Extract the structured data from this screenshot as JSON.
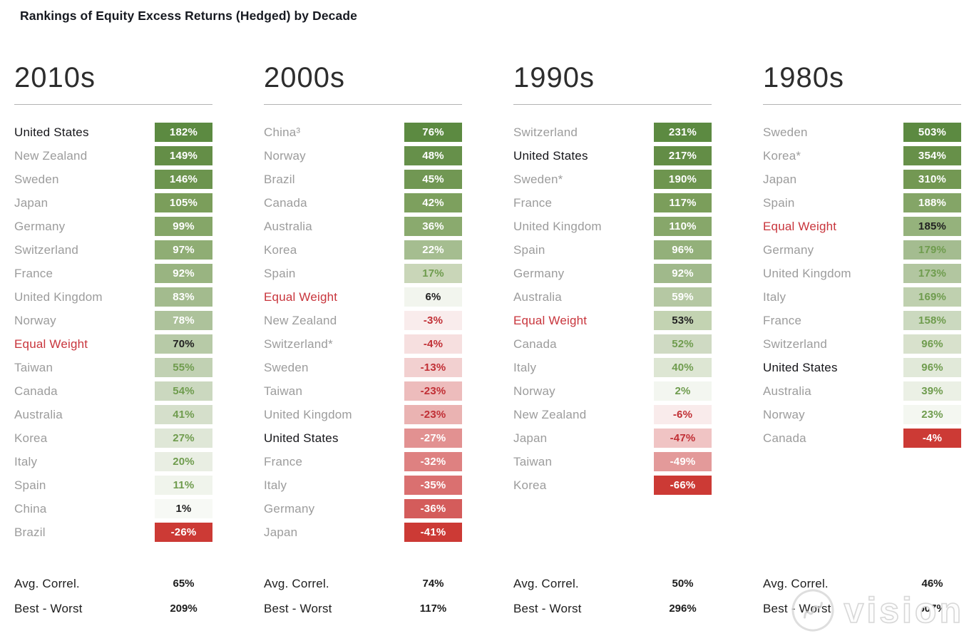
{
  "title": "Rankings of Equity Excess Returns (Hedged) by Decade",
  "watermark": {
    "text": "vision",
    "stamp_icon": "circular-stamp-icon"
  },
  "colors": {
    "background": "#ffffff",
    "best_green": "#5c8a41",
    "worst_red": "#cc3a35",
    "equal_weight_red": "#c8353c",
    "country_gray": "#9c9c9c",
    "highlight_black": "#16161a",
    "rule_gray": "#b3b3b3"
  },
  "chart_data": {
    "type": "heatmap",
    "title": "Rankings of Equity Excess Returns (Hedged) by Decade",
    "legend_position": "none",
    "value_unit": "%",
    "stat_labels": [
      "Avg. Correl.",
      "Best - Worst"
    ],
    "columns": [
      {
        "decade": "2010s",
        "stat_values": [
          65,
          209
        ],
        "rows": [
          {
            "country": "United States",
            "value": 182,
            "bg": "#5c8a41",
            "fg": "white",
            "label_color": "black"
          },
          {
            "country": "New Zealand",
            "value": 149,
            "bg": "#648e47",
            "fg": "white",
            "label_color": "gray"
          },
          {
            "country": "Sweden",
            "value": 146,
            "bg": "#6c944e",
            "fg": "white",
            "label_color": "gray"
          },
          {
            "country": "Japan",
            "value": 105,
            "bg": "#7b9e5b",
            "fg": "white",
            "label_color": "gray"
          },
          {
            "country": "Germany",
            "value": 99,
            "bg": "#85a668",
            "fg": "white",
            "label_color": "gray"
          },
          {
            "country": "Switzerland",
            "value": 97,
            "bg": "#8fad74",
            "fg": "white",
            "label_color": "gray"
          },
          {
            "country": "France",
            "value": 92,
            "bg": "#99b481",
            "fg": "white",
            "label_color": "gray"
          },
          {
            "country": "United Kingdom",
            "value": 83,
            "bg": "#a3bb8e",
            "fg": "white",
            "label_color": "gray"
          },
          {
            "country": "Norway",
            "value": 78,
            "bg": "#adc29b",
            "fg": "white",
            "label_color": "gray"
          },
          {
            "country": "Equal Weight",
            "value": 70,
            "bg": "#b7caa7",
            "fg": "black",
            "label_color": "red"
          },
          {
            "country": "Taiwan",
            "value": 55,
            "bg": "#c1d1b3",
            "fg": "green",
            "label_color": "gray"
          },
          {
            "country": "Canada",
            "value": 54,
            "bg": "#cbd8bf",
            "fg": "green",
            "label_color": "gray"
          },
          {
            "country": "Australia",
            "value": 41,
            "bg": "#d5dfcb",
            "fg": "green",
            "label_color": "gray"
          },
          {
            "country": "Korea",
            "value": 27,
            "bg": "#dfe7d7",
            "fg": "green",
            "label_color": "gray"
          },
          {
            "country": "Italy",
            "value": 20,
            "bg": "#e9eee3",
            "fg": "green",
            "label_color": "gray"
          },
          {
            "country": "Spain",
            "value": 11,
            "bg": "#f0f4ec",
            "fg": "green",
            "label_color": "gray"
          },
          {
            "country": "China",
            "value": 1,
            "bg": "#f7f9f5",
            "fg": "black",
            "label_color": "gray"
          },
          {
            "country": "Brazil",
            "value": -26,
            "bg": "#cc3a35",
            "fg": "white",
            "label_color": "gray"
          }
        ]
      },
      {
        "decade": "2000s",
        "stat_values": [
          74,
          117
        ],
        "rows": [
          {
            "country": "China³",
            "value": 76,
            "bg": "#5c8a41",
            "fg": "white",
            "label_color": "gray"
          },
          {
            "country": "Norway",
            "value": 48,
            "bg": "#66904a",
            "fg": "white",
            "label_color": "gray"
          },
          {
            "country": "Brazil",
            "value": 45,
            "bg": "#719753",
            "fg": "white",
            "label_color": "gray"
          },
          {
            "country": "Canada",
            "value": 42,
            "bg": "#7da05e",
            "fg": "white",
            "label_color": "gray"
          },
          {
            "country": "Australia",
            "value": 36,
            "bg": "#8aaa6e",
            "fg": "white",
            "label_color": "gray"
          },
          {
            "country": "Korea",
            "value": 22,
            "bg": "#a5bd90",
            "fg": "white",
            "label_color": "gray"
          },
          {
            "country": "Spain",
            "value": 17,
            "bg": "#c9d6b8",
            "fg": "green",
            "label_color": "gray"
          },
          {
            "country": "Equal Weight",
            "value": 6,
            "bg": "#f2f5ee",
            "fg": "black",
            "label_color": "red"
          },
          {
            "country": "New Zealand",
            "value": -3,
            "bg": "#f9ecec",
            "fg": "red",
            "label_color": "gray"
          },
          {
            "country": "Switzerland*",
            "value": -4,
            "bg": "#f6dfdf",
            "fg": "red",
            "label_color": "gray"
          },
          {
            "country": "Sweden",
            "value": -13,
            "bg": "#f2d0d0",
            "fg": "red",
            "label_color": "gray"
          },
          {
            "country": "Taiwan",
            "value": -23,
            "bg": "#edbcbc",
            "fg": "red",
            "label_color": "gray"
          },
          {
            "country": "United Kingdom",
            "value": -23,
            "bg": "#eab3b2",
            "fg": "red",
            "label_color": "gray"
          },
          {
            "country": "United States",
            "value": -27,
            "bg": "#e29191",
            "fg": "white",
            "label_color": "black"
          },
          {
            "country": "France",
            "value": -32,
            "bg": "#de8181",
            "fg": "white",
            "label_color": "gray"
          },
          {
            "country": "Italy",
            "value": -35,
            "bg": "#da7070",
            "fg": "white",
            "label_color": "gray"
          },
          {
            "country": "Germany",
            "value": -36,
            "bg": "#d45c5b",
            "fg": "white",
            "label_color": "gray"
          },
          {
            "country": "Japan",
            "value": -41,
            "bg": "#cc3a35",
            "fg": "white",
            "label_color": "gray"
          }
        ]
      },
      {
        "decade": "1990s",
        "stat_values": [
          50,
          296
        ],
        "rows": [
          {
            "country": "Switzerland",
            "value": 231,
            "bg": "#5c8a41",
            "fg": "white",
            "label_color": "gray"
          },
          {
            "country": "United States",
            "value": 217,
            "bg": "#638d46",
            "fg": "white",
            "label_color": "black"
          },
          {
            "country": "Sweden*",
            "value": 190,
            "bg": "#6e954f",
            "fg": "white",
            "label_color": "gray"
          },
          {
            "country": "France",
            "value": 117,
            "bg": "#7b9e5b",
            "fg": "white",
            "label_color": "gray"
          },
          {
            "country": "United Kingdom",
            "value": 110,
            "bg": "#87a76a",
            "fg": "white",
            "label_color": "gray"
          },
          {
            "country": "Spain",
            "value": 96,
            "bg": "#93b07a",
            "fg": "white",
            "label_color": "gray"
          },
          {
            "country": "Germany",
            "value": 92,
            "bg": "#a0b98b",
            "fg": "white",
            "label_color": "gray"
          },
          {
            "country": "Australia",
            "value": 59,
            "bg": "#b5c8a3",
            "fg": "white",
            "label_color": "gray"
          },
          {
            "country": "Equal Weight",
            "value": 53,
            "bg": "#c3d3b2",
            "fg": "black",
            "label_color": "red"
          },
          {
            "country": "Canada",
            "value": 52,
            "bg": "#cfdac3",
            "fg": "green",
            "label_color": "gray"
          },
          {
            "country": "Italy",
            "value": 40,
            "bg": "#dde6d3",
            "fg": "green",
            "label_color": "gray"
          },
          {
            "country": "Norway",
            "value": 2,
            "bg": "#f3f6f0",
            "fg": "green",
            "label_color": "gray"
          },
          {
            "country": "New Zealand",
            "value": -6,
            "bg": "#f9ebeb",
            "fg": "red",
            "label_color": "gray"
          },
          {
            "country": "Japan",
            "value": -47,
            "bg": "#f0c4c4",
            "fg": "red",
            "label_color": "gray"
          },
          {
            "country": "Taiwan",
            "value": -49,
            "bg": "#e39a9a",
            "fg": "white",
            "label_color": "gray"
          },
          {
            "country": "Korea",
            "value": -66,
            "bg": "#cc3a35",
            "fg": "white",
            "label_color": "gray"
          }
        ]
      },
      {
        "decade": "1980s",
        "stat_values": [
          46,
          507
        ],
        "rows": [
          {
            "country": "Sweden",
            "value": 503,
            "bg": "#5c8a41",
            "fg": "white",
            "label_color": "gray"
          },
          {
            "country": "Korea*",
            "value": 354,
            "bg": "#679049",
            "fg": "white",
            "label_color": "gray"
          },
          {
            "country": "Japan",
            "value": 310,
            "bg": "#739853",
            "fg": "white",
            "label_color": "gray"
          },
          {
            "country": "Spain",
            "value": 188,
            "bg": "#84a567",
            "fg": "white",
            "label_color": "gray"
          },
          {
            "country": "Equal Weight",
            "value": 185,
            "bg": "#95b27c",
            "fg": "black",
            "label_color": "red"
          },
          {
            "country": "Germany",
            "value": 179,
            "bg": "#a4bc90",
            "fg": "green",
            "label_color": "gray"
          },
          {
            "country": "United Kingdom",
            "value": 173,
            "bg": "#b2c6a0",
            "fg": "green",
            "label_color": "gray"
          },
          {
            "country": "Italy",
            "value": 169,
            "bg": "#bfd0af",
            "fg": "green",
            "label_color": "gray"
          },
          {
            "country": "France",
            "value": 158,
            "bg": "#cbd9bf",
            "fg": "green",
            "label_color": "gray"
          },
          {
            "country": "Switzerland",
            "value": 96,
            "bg": "#d8e1cc",
            "fg": "green",
            "label_color": "gray"
          },
          {
            "country": "United States",
            "value": 96,
            "bg": "#e1e9d9",
            "fg": "green",
            "label_color": "black"
          },
          {
            "country": "Australia",
            "value": 39,
            "bg": "#ebf0e5",
            "fg": "green",
            "label_color": "gray"
          },
          {
            "country": "Norway",
            "value": 23,
            "bg": "#f4f7f1",
            "fg": "green",
            "label_color": "gray"
          },
          {
            "country": "Canada",
            "value": -4,
            "bg": "#cc3a35",
            "fg": "white",
            "label_color": "gray"
          }
        ]
      }
    ]
  }
}
